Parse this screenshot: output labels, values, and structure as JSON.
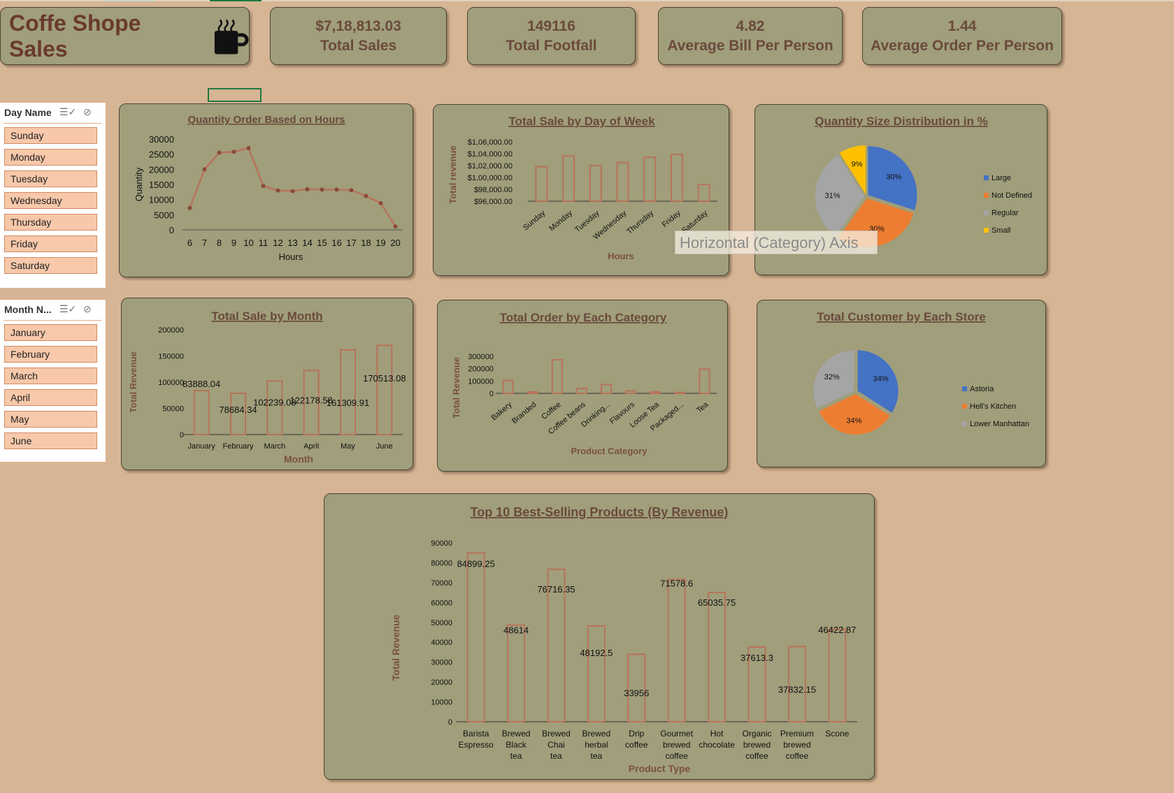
{
  "dashboard": {
    "title": "Coffe Shope Sales",
    "cup_icon": "coffee-cup-icon"
  },
  "kpis": [
    {
      "value": "$7,18,813.03",
      "label": "Total Sales"
    },
    {
      "value": "149116",
      "label": "Total Footfall"
    },
    {
      "value": "4.82",
      "label": "Average Bill Per Person"
    },
    {
      "value": "1.44",
      "label": "Average Order Per Person"
    }
  ],
  "slicers": {
    "day": {
      "title": "Day Name",
      "items": [
        "Sunday",
        "Monday",
        "Tuesday",
        "Wednesday",
        "Thursday",
        "Friday",
        "Saturday"
      ]
    },
    "month": {
      "title": "Month N...",
      "items": [
        "January",
        "February",
        "March",
        "April",
        "May",
        "June"
      ]
    }
  },
  "tooltip": "Horizontal (Category) Axis",
  "colors": {
    "background": "#d6b595",
    "card": "#a09e7b",
    "bar_outline": "#b8735a",
    "text": "#6a4a3c"
  },
  "chart_data": [
    {
      "id": "hours",
      "type": "line",
      "title": "Quantity Order Based on Hours",
      "xlabel": "Hours",
      "ylabel": "Quantity",
      "x": [
        6,
        7,
        8,
        9,
        10,
        11,
        12,
        13,
        14,
        15,
        16,
        17,
        18,
        19,
        20
      ],
      "values": [
        7200,
        20000,
        25500,
        25800,
        27000,
        14500,
        13000,
        12800,
        13400,
        13300,
        13300,
        13100,
        11200,
        8800,
        1100
      ],
      "ylim": [
        0,
        30000
      ],
      "yticks": [
        "0",
        "5000",
        "10000",
        "15000",
        "20000",
        "25000",
        "30000"
      ],
      "xticks": [
        "6",
        "7",
        "8",
        "9",
        "10",
        "11",
        "12",
        "13",
        "14",
        "15",
        "16",
        "17",
        "18",
        "19",
        "20"
      ]
    },
    {
      "id": "weekday",
      "type": "bar",
      "title": "Total Sale by Day of Week",
      "xlabel": "Hours",
      "ylabel": "Total revenue",
      "categories": [
        "Sunday",
        "Monday",
        "Tuesday",
        "Wednesday",
        "Thursday",
        "Friday",
        "Saturday"
      ],
      "values": [
        101800,
        103600,
        102000,
        102500,
        103400,
        103900,
        98800
      ],
      "ylim": [
        96000,
        106000
      ],
      "yticks": [
        "$96,000.00",
        "$98,000.00",
        "$1,00,000.00",
        "$1,02,000.00",
        "$1,04,000.00",
        "$1,06,000.00"
      ]
    },
    {
      "id": "size",
      "type": "pie",
      "title": "Quantity Size Distribution in %",
      "labels": [
        "Large",
        "Not Defined",
        "Regular",
        "Small"
      ],
      "values": [
        30,
        30,
        31,
        9
      ],
      "value_labels": [
        "30%",
        "30%",
        "31%",
        "9%"
      ],
      "colors": [
        "#4472c4",
        "#ed7d31",
        "#a5a5a5",
        "#ffc000"
      ]
    },
    {
      "id": "month",
      "type": "bar",
      "title": "Total Sale by Month",
      "xlabel": "Month",
      "ylabel": "Total Revenue",
      "categories": [
        "January",
        "February",
        "March",
        "April",
        "May",
        "June"
      ],
      "values": [
        83888.04,
        78684.34,
        102239.08,
        122178.58,
        161309.91,
        170513.08
      ],
      "value_labels": [
        "83888.04",
        "78684.34",
        "102239.08",
        "122178.58",
        "161309.91",
        "170513.08"
      ],
      "ylim": [
        0,
        200000
      ],
      "yticks": [
        "0",
        "50000",
        "100000",
        "150000",
        "200000"
      ]
    },
    {
      "id": "category",
      "type": "bar",
      "title": "Total Order by Each Category",
      "xlabel": "Product Category",
      "ylabel": "Total Revenue",
      "categories": [
        "Bakery",
        "Branded",
        "Coffee",
        "Coffee beans",
        "Drinking...",
        "Flavours",
        "Loose Tea",
        "Packaged...",
        "Tea"
      ],
      "values": [
        105000,
        12000,
        272000,
        40000,
        72000,
        20000,
        12000,
        8000,
        196000
      ],
      "ylim": [
        0,
        300000
      ],
      "yticks": [
        "0",
        "100000",
        "200000",
        "300000"
      ]
    },
    {
      "id": "store",
      "type": "pie",
      "title": "Total Customer by Each Store",
      "labels": [
        "Astoria",
        "Hell's Kitchen",
        "Lower Manhattan"
      ],
      "values": [
        34,
        34,
        32
      ],
      "value_labels": [
        "34%",
        "34%",
        "32%"
      ],
      "colors": [
        "#4472c4",
        "#ed7d31",
        "#a5a5a5"
      ]
    },
    {
      "id": "products",
      "type": "bar",
      "title": "Top 10 Best-Selling Products (By Revenue)",
      "xlabel": "Product Type",
      "ylabel": "Total Revenue",
      "categories": [
        "Barista Espresso",
        "Brewed Black tea",
        "Brewed Chai tea",
        "Brewed herbal tea",
        "Drip coffee",
        "Gourmet brewed coffee",
        "Hot chocolate",
        "Organic brewed coffee",
        "Premium brewed coffee",
        "Scone"
      ],
      "values": [
        84899.25,
        48614,
        76716.35,
        48192.5,
        33956,
        71578.6,
        65035.75,
        37613.3,
        37832.15,
        46422.87
      ],
      "value_labels": [
        "84899.25",
        "48614",
        "76716.35",
        "48192.5",
        "33956",
        "71578.6",
        "65035.75",
        "37613.3",
        "37832.15",
        "46422.87"
      ],
      "ylim": [
        0,
        90000
      ],
      "yticks": [
        "0",
        "10000",
        "20000",
        "30000",
        "40000",
        "50000",
        "60000",
        "70000",
        "80000",
        "90000"
      ]
    }
  ]
}
